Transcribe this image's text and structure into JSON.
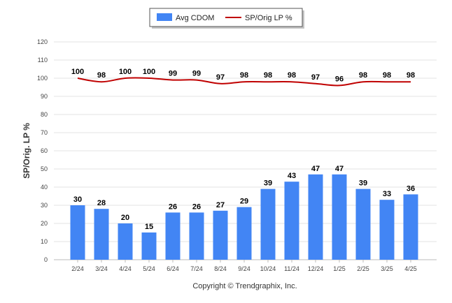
{
  "chart_data": {
    "type": "bar",
    "categories": [
      "2/24",
      "3/24",
      "4/24",
      "5/24",
      "6/24",
      "7/24",
      "8/24",
      "9/24",
      "10/24",
      "11/24",
      "12/24",
      "1/25",
      "2/25",
      "3/25",
      "4/25"
    ],
    "series": [
      {
        "name": "Avg CDOM",
        "type": "bar",
        "color": "#4285f4",
        "values": [
          30,
          28,
          20,
          15,
          26,
          26,
          27,
          29,
          39,
          43,
          47,
          47,
          39,
          33,
          36
        ]
      },
      {
        "name": "SP/Orig LP %",
        "type": "line",
        "color": "#c00000",
        "values": [
          100,
          98,
          100,
          100,
          99,
          99,
          97,
          98,
          98,
          98,
          97,
          96,
          98,
          98,
          98
        ]
      }
    ],
    "ylabel": "SP/Orig. LP %",
    "ylim": [
      0,
      120
    ],
    "yticks": [
      0,
      10,
      20,
      30,
      40,
      50,
      60,
      70,
      80,
      90,
      100,
      110,
      120
    ],
    "grid": true,
    "legend_position": "top-center"
  },
  "footer": {
    "copyright": "Copyright © Trendgraphix, Inc."
  }
}
